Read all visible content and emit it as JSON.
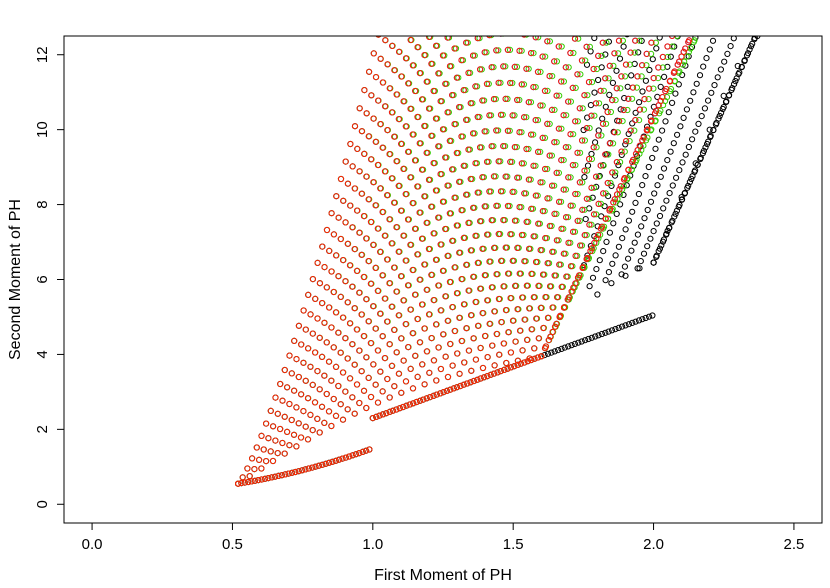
{
  "chart_data": {
    "type": "scatter",
    "xlabel": "First Moment of PH",
    "ylabel": "Second Moment of PH",
    "xlim": [
      -0.1,
      2.6
    ],
    "ylim": [
      -0.5,
      12.5
    ],
    "x_ticks": [
      0.0,
      0.5,
      1.0,
      1.5,
      2.0,
      2.5
    ],
    "x_tick_labels": [
      "0.0",
      "0.5",
      "1.0",
      "1.5",
      "2.0",
      "2.5"
    ],
    "y_ticks": [
      0,
      2,
      4,
      6,
      8,
      10,
      12
    ],
    "y_tick_labels": [
      "0",
      "2",
      "4",
      "6",
      "8",
      "10",
      "12"
    ],
    "marker": "open-circle",
    "grid": false,
    "series": [
      {
        "color": "#000000",
        "boundary": {
          "lower_knee": [
            2.0,
            6.45
          ],
          "upper_right": [
            2.37,
            12.5
          ],
          "min_point": [
            0.52,
            0.55
          ]
        },
        "points": [
          [
            2.0,
            6.45
          ],
          [
            2.05,
            7.3
          ],
          [
            2.1,
            8.2
          ],
          [
            2.15,
            9.1
          ],
          [
            2.2,
            10.0
          ],
          [
            2.25,
            10.9
          ],
          [
            2.3,
            11.7
          ],
          [
            2.37,
            12.5
          ],
          [
            1.95,
            6.3
          ],
          [
            1.9,
            6.1
          ],
          [
            1.85,
            5.9
          ],
          [
            1.8,
            5.6
          ]
        ]
      },
      {
        "color": "#0000ff",
        "boundary": {
          "lower_knee": [
            1.6,
            3.95
          ],
          "upper_right": [
            2.14,
            12.5
          ],
          "min_point": [
            0.52,
            0.55
          ]
        },
        "points": []
      },
      {
        "color": "#33cc00",
        "boundary": {
          "lower_knee": [
            1.6,
            3.95
          ],
          "upper_right": [
            2.16,
            12.5
          ],
          "min_point": [
            0.52,
            0.55
          ]
        },
        "points": []
      },
      {
        "color": "#ff2000",
        "boundary": {
          "lower_knee": [
            1.6,
            3.95
          ],
          "upper_right": [
            2.14,
            12.5
          ],
          "min_point": [
            0.52,
            0.55
          ]
        },
        "points": []
      }
    ]
  }
}
